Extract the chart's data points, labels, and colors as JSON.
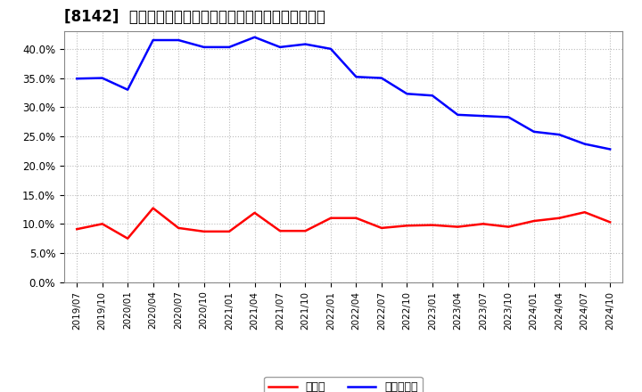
{
  "title": "[8142]  現預金、有利子負債の総資産に対する比率の推移",
  "x_labels": [
    "2019/07",
    "2019/10",
    "2020/01",
    "2020/04",
    "2020/07",
    "2020/10",
    "2021/01",
    "2021/04",
    "2021/07",
    "2021/10",
    "2022/01",
    "2022/04",
    "2022/07",
    "2022/10",
    "2023/01",
    "2023/04",
    "2023/07",
    "2023/10",
    "2024/01",
    "2024/04",
    "2024/07",
    "2024/10"
  ],
  "cash": [
    0.091,
    0.1,
    0.075,
    0.127,
    0.093,
    0.087,
    0.087,
    0.119,
    0.088,
    0.088,
    0.11,
    0.11,
    0.093,
    0.097,
    0.098,
    0.095,
    0.1,
    0.095,
    0.105,
    0.11,
    0.12,
    0.103
  ],
  "debt": [
    0.349,
    0.35,
    0.33,
    0.415,
    0.415,
    0.403,
    0.403,
    0.42,
    0.403,
    0.408,
    0.4,
    0.352,
    0.35,
    0.323,
    0.32,
    0.287,
    0.285,
    0.283,
    0.258,
    0.253,
    0.237,
    0.228
  ],
  "cash_color": "#ff0000",
  "debt_color": "#0000ff",
  "background_color": "#ffffff",
  "plot_bg_color": "#ffffff",
  "grid_color": "#aaaaaa",
  "ylim": [
    0.0,
    0.43
  ],
  "yticks": [
    0.0,
    0.05,
    0.1,
    0.15,
    0.2,
    0.25,
    0.3,
    0.35,
    0.4
  ],
  "legend_cash": "現預金",
  "legend_debt": "有利子負債",
  "title_fontsize": 12,
  "line_width": 1.8
}
